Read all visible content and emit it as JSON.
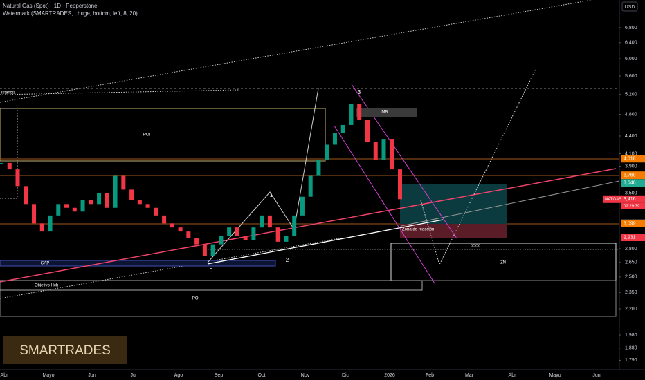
{
  "chart_data": {
    "type": "candlestick",
    "title": "Natural Gas (Spot) · 1D · Pepperstone",
    "subtitle": "Watermark (SMARTRADES, , huge, bottom, left, 8, 20)",
    "currency": "USD",
    "log_scale": true,
    "up_color": "#089981",
    "down_color": "#f23645",
    "ylim": [
      1700,
      7430
    ],
    "yticks": [
      {
        "value": 6800,
        "label": "6,800"
      },
      {
        "value": 6400,
        "label": "6,400"
      },
      {
        "value": 6000,
        "label": "6,000"
      },
      {
        "value": 5600,
        "label": "5,600"
      },
      {
        "value": 5200,
        "label": "5,200"
      },
      {
        "value": 4800,
        "label": "4,800"
      },
      {
        "value": 4400,
        "label": "4,400"
      },
      {
        "value": 4100,
        "label": "4,100"
      },
      {
        "value": 3900,
        "label": "3,900"
      },
      {
        "value": 3500,
        "label": "3,500"
      },
      {
        "value": 2800,
        "label": "2,800"
      },
      {
        "value": 2650,
        "label": "2,650"
      },
      {
        "value": 2500,
        "label": "2,500"
      },
      {
        "value": 2350,
        "label": "2,350"
      },
      {
        "value": 2200,
        "label": "2,200"
      },
      {
        "value": 1980,
        "label": "1,980"
      },
      {
        "value": 1880,
        "label": "1,880"
      },
      {
        "value": 1790,
        "label": "1,790"
      }
    ],
    "x_labels": [
      "Abr",
      "Mayo",
      "Jun",
      "Jul",
      "Ago",
      "Sep",
      "Oct",
      "Nov",
      "Dic",
      "2026",
      "Feb",
      "Mar",
      "Abr",
      "Mayo",
      "Jun"
    ],
    "values": [
      3950,
      3850,
      3600,
      3350,
      3100,
      3000,
      3200,
      3350,
      3300,
      3250,
      3400,
      3350,
      3500,
      3300,
      3750,
      3550,
      3400,
      3350,
      3300,
      3200,
      3100,
      3050,
      3000,
      2920,
      2850,
      2720,
      2850,
      2950,
      3050,
      2950,
      2900,
      3050,
      3200,
      3050,
      2880,
      2950,
      3200,
      3450,
      3750,
      4000,
      4250,
      4450,
      4600,
      5000,
      4700,
      4300,
      4000,
      4350,
      3850,
      3416
    ],
    "price_labels": [
      {
        "value": 4018,
        "label": "4,018",
        "color": "#f57c00"
      },
      {
        "value": 3760,
        "label": "3,760",
        "color": "#f57c00"
      },
      {
        "value": 3646,
        "label": "3,646",
        "color": "#22ab94"
      },
      {
        "value": 3416,
        "label": "3,416",
        "color": "#f23645"
      },
      {
        "value": 3102,
        "label": "3,102",
        "color": "#5d606b"
      },
      {
        "value": 3099,
        "label": "3,099",
        "color": "#f57c00"
      },
      {
        "value": 2931,
        "label": "2,931",
        "color": "#f23645"
      }
    ],
    "symbol": "NATGAS",
    "countdown": "02:29:39",
    "annotations": [
      "istencia",
      "POI",
      "IMB",
      "GAP",
      "0",
      "1",
      "2",
      "3",
      "Objetivo Hch",
      "POI",
      "Zona de reacción",
      "XXX",
      "ZN"
    ],
    "watermark": "SMARTRADES"
  }
}
